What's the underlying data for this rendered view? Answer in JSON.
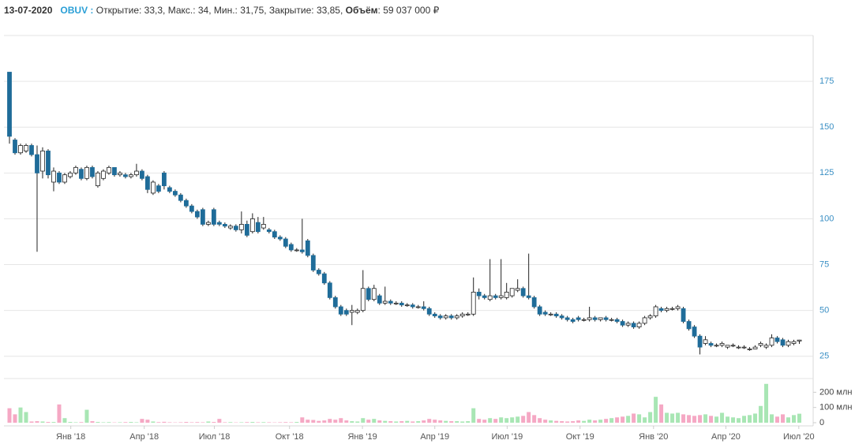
{
  "header": {
    "date": "13-07-2020",
    "ticker": "OBUV :",
    "stats": "Открытие: 33,3, Макс.: 34, Мин.: 31,75, Закрытие: 33,85,",
    "volume_label": "Объём",
    "volume_value": "59 037 000 ₽"
  },
  "chart_data": [
    {
      "type": "candlestick",
      "up_color": "#ffffff",
      "down_color": "#1f6c99",
      "xlim": [
        -1,
        145.5
      ],
      "ylim": [
        15,
        200
      ],
      "yticks": [
        25,
        50,
        75,
        100,
        125,
        150,
        175
      ],
      "grid": true,
      "ohlc": [
        [
          180,
          180,
          141,
          145
        ],
        [
          143,
          144,
          135,
          136
        ],
        [
          136,
          141,
          135,
          140
        ],
        [
          137,
          141,
          136,
          140
        ],
        [
          140,
          141,
          134,
          135
        ],
        [
          135,
          140,
          82,
          125
        ],
        [
          126,
          139,
          122,
          137
        ],
        [
          137,
          138,
          122,
          124
        ],
        [
          120,
          128,
          115,
          126
        ],
        [
          125,
          126,
          119,
          120
        ],
        [
          120,
          125,
          119,
          124
        ],
        [
          123,
          126,
          122,
          125
        ],
        [
          125,
          129,
          124,
          128
        ],
        [
          127,
          128,
          121,
          122
        ],
        [
          122,
          129,
          121,
          128
        ],
        [
          128,
          129,
          122,
          123
        ],
        [
          118,
          126,
          117,
          125
        ],
        [
          122,
          127,
          121,
          126
        ],
        [
          125,
          129,
          124,
          128
        ],
        [
          128,
          128,
          123,
          124
        ],
        [
          124,
          126,
          123,
          125
        ],
        [
          124,
          125,
          122,
          123
        ],
        [
          123,
          125,
          122,
          124
        ],
        [
          124,
          130,
          123,
          126
        ],
        [
          126,
          127,
          121,
          122
        ],
        [
          123,
          124,
          114,
          116
        ],
        [
          114,
          121,
          113,
          120
        ],
        [
          118,
          119,
          114,
          115
        ],
        [
          125,
          126,
          116,
          118
        ],
        [
          117,
          118,
          114,
          115
        ],
        [
          115,
          116,
          112,
          113
        ],
        [
          113,
          114,
          109,
          110
        ],
        [
          110,
          111,
          106,
          107
        ],
        [
          107,
          108,
          103,
          104
        ],
        [
          104,
          105,
          100,
          101
        ],
        [
          105,
          106,
          96,
          97
        ],
        [
          97,
          99,
          96,
          98
        ],
        [
          105,
          106,
          96,
          97
        ],
        [
          98,
          99,
          96,
          97
        ],
        [
          97,
          98,
          95,
          96
        ],
        [
          95,
          97,
          94,
          96
        ],
        [
          96,
          97,
          93,
          94
        ],
        [
          94,
          104,
          92,
          97
        ],
        [
          97,
          99,
          90,
          91
        ],
        [
          93,
          103,
          92,
          100
        ],
        [
          98,
          101,
          92,
          93
        ],
        [
          95,
          101,
          94,
          97
        ],
        [
          94,
          95,
          92,
          93
        ],
        [
          93,
          94,
          89,
          90
        ],
        [
          90,
          91,
          88,
          89
        ],
        [
          89,
          90,
          84,
          85
        ],
        [
          86,
          87,
          82,
          83
        ],
        [
          83,
          84,
          82,
          83
        ],
        [
          83,
          100,
          81,
          82
        ],
        [
          88,
          89,
          79,
          80
        ],
        [
          80,
          81,
          71,
          72
        ],
        [
          72,
          73,
          69,
          70
        ],
        [
          70,
          71,
          64,
          65
        ],
        [
          65,
          66,
          56,
          57
        ],
        [
          57,
          58,
          51,
          52
        ],
        [
          52,
          53,
          47,
          48
        ],
        [
          50,
          51,
          47,
          48
        ],
        [
          49,
          53,
          42,
          50
        ],
        [
          49,
          51,
          48,
          50
        ],
        [
          50,
          72,
          49,
          62
        ],
        [
          62,
          63,
          55,
          56
        ],
        [
          56,
          64,
          55,
          62
        ],
        [
          58,
          59,
          53,
          54
        ],
        [
          54,
          63,
          53,
          55
        ],
        [
          55,
          56,
          53,
          54
        ],
        [
          54,
          55,
          53,
          54
        ],
        [
          54,
          55,
          52,
          53
        ],
        [
          53,
          54,
          52,
          53
        ],
        [
          53,
          54,
          51,
          52
        ],
        [
          52,
          53,
          51,
          52
        ],
        [
          52,
          55,
          50,
          51
        ],
        [
          51,
          52,
          47,
          48
        ],
        [
          48,
          49,
          46,
          47
        ],
        [
          47,
          48,
          45,
          46
        ],
        [
          46,
          48,
          45,
          47
        ],
        [
          47,
          48,
          45,
          46
        ],
        [
          46,
          48,
          45,
          47
        ],
        [
          47,
          49,
          46,
          48
        ],
        [
          48,
          49,
          47,
          48
        ],
        [
          48,
          68,
          47,
          60
        ],
        [
          60,
          62,
          56,
          58
        ],
        [
          58,
          59,
          56,
          57
        ],
        [
          56,
          78,
          55,
          58
        ],
        [
          58,
          59,
          56,
          57
        ],
        [
          57,
          78,
          56,
          58
        ],
        [
          57,
          65,
          56,
          60
        ],
        [
          58,
          62,
          57,
          62
        ],
        [
          61,
          67,
          60,
          62
        ],
        [
          62,
          63,
          57,
          58
        ],
        [
          58,
          81,
          56,
          57
        ],
        [
          57,
          58,
          51,
          52
        ],
        [
          52,
          53,
          47,
          48
        ],
        [
          49,
          50,
          47,
          48
        ],
        [
          48,
          49,
          47,
          48
        ],
        [
          48,
          49,
          46,
          47
        ],
        [
          47,
          48,
          45,
          46
        ],
        [
          46,
          47,
          44,
          45
        ],
        [
          45,
          46,
          43,
          44
        ],
        [
          46,
          47,
          44,
          45
        ],
        [
          45,
          46,
          44,
          45
        ],
        [
          45,
          52,
          44,
          46
        ],
        [
          46,
          47,
          44,
          45
        ],
        [
          45,
          46,
          44,
          46
        ],
        [
          46,
          47,
          44,
          45
        ],
        [
          45,
          46,
          44,
          45
        ],
        [
          45,
          46,
          43,
          44
        ],
        [
          44,
          45,
          41,
          42
        ],
        [
          42,
          44,
          41,
          43
        ],
        [
          43,
          44,
          40,
          41
        ],
        [
          41,
          44,
          40,
          43
        ],
        [
          43,
          47,
          42,
          46
        ],
        [
          46,
          48,
          45,
          47
        ],
        [
          47,
          53,
          46,
          52
        ],
        [
          51,
          52,
          49,
          50
        ],
        [
          50,
          52,
          49,
          51
        ],
        [
          51,
          52,
          50,
          51
        ],
        [
          51,
          53,
          50,
          52
        ],
        [
          51,
          52,
          43,
          44
        ],
        [
          44,
          45,
          39,
          40
        ],
        [
          41,
          42,
          35,
          36
        ],
        [
          36,
          37,
          26,
          30
        ],
        [
          32,
          36,
          31,
          34
        ],
        [
          32,
          33,
          30,
          31
        ],
        [
          31,
          32,
          30,
          31
        ],
        [
          31,
          33,
          30,
          32
        ],
        [
          30,
          31,
          29,
          31
        ],
        [
          31,
          32,
          30,
          31
        ],
        [
          30,
          31,
          29,
          30
        ],
        [
          30,
          31,
          29,
          30
        ],
        [
          29,
          30,
          28,
          29
        ],
        [
          29,
          31,
          29,
          30
        ],
        [
          31,
          33,
          30,
          32
        ],
        [
          30,
          32,
          29,
          31
        ],
        [
          31,
          37,
          30,
          35
        ],
        [
          35,
          36,
          32,
          33
        ],
        [
          34,
          35,
          30,
          31
        ],
        [
          31,
          34,
          30,
          33
        ],
        [
          32,
          34,
          31,
          33
        ],
        [
          33.3,
          34,
          31.75,
          33.85
        ]
      ]
    },
    {
      "type": "volume",
      "up_color": "#a8e6b4",
      "down_color": "#f5a8c4",
      "xlim": [
        -1,
        145.5
      ],
      "ylim": [
        0,
        290
      ],
      "yticks": [
        0,
        {
          "value": 100,
          "label": "100 млн"
        },
        {
          "value": 200,
          "label": "200 млн"
        }
      ],
      "xticks": [
        {
          "value": 11.1,
          "label": "Янв '18"
        },
        {
          "value": 24.4,
          "label": "Апр '18"
        },
        {
          "value": 37.1,
          "label": "Июл '18"
        },
        {
          "value": 50.7,
          "label": "Окт '18"
        },
        {
          "value": 63.9,
          "label": "Янв '19"
        },
        {
          "value": 77,
          "label": "Апр '19"
        },
        {
          "value": 90.1,
          "label": "Июл '19"
        },
        {
          "value": 103.3,
          "label": "Окт '19"
        },
        {
          "value": 116.6,
          "label": "Янв '20"
        },
        {
          "value": 129.7,
          "label": "Апр '20"
        },
        {
          "value": 142.9,
          "label": "Июл '20"
        }
      ],
      "values": [
        95,
        55,
        100,
        70,
        8,
        10,
        8,
        5,
        5,
        120,
        30,
        5,
        3,
        4,
        85,
        10,
        5,
        3,
        4,
        2,
        3,
        4,
        5,
        3,
        25,
        20,
        8,
        4,
        6,
        3,
        2,
        3,
        5,
        3,
        4,
        3,
        8,
        5,
        25,
        3,
        4,
        2,
        3,
        4,
        5,
        3,
        4,
        3,
        2,
        3,
        4,
        3,
        5,
        35,
        20,
        18,
        12,
        15,
        25,
        20,
        30,
        15,
        10,
        8,
        30,
        20,
        25,
        15,
        12,
        10,
        8,
        10,
        12,
        8,
        10,
        15,
        25,
        20,
        15,
        12,
        10,
        10,
        8,
        10,
        95,
        25,
        20,
        30,
        25,
        35,
        30,
        35,
        40,
        45,
        70,
        50,
        30,
        20,
        15,
        12,
        10,
        8,
        10,
        15,
        12,
        20,
        15,
        20,
        25,
        30,
        35,
        40,
        45,
        60,
        55,
        35,
        70,
        170,
        120,
        65,
        60,
        65,
        55,
        50,
        45,
        50,
        55,
        45,
        40,
        65,
        40,
        35,
        30,
        45,
        50,
        60,
        110,
        255,
        55,
        40,
        55,
        35,
        50,
        59.037
      ]
    }
  ]
}
